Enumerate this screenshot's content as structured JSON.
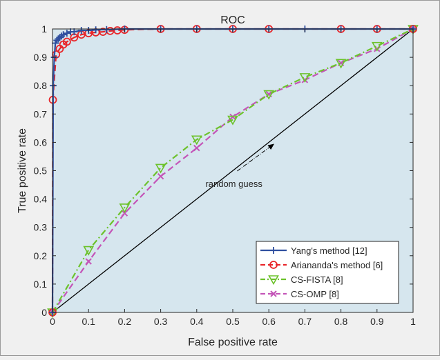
{
  "chart_data": {
    "type": "line",
    "title": "ROC",
    "xlabel": "False positive rate",
    "ylabel": "True positive rate",
    "xlim": [
      0,
      1
    ],
    "ylim": [
      0,
      1
    ],
    "xticks": [
      "0",
      "0.1",
      "0.2",
      "0.3",
      "0.4",
      "0.5",
      "0.6",
      "0.7",
      "0.8",
      "0.9",
      "1"
    ],
    "yticks": [
      "0",
      "0.1",
      "0.2",
      "0.3",
      "0.4",
      "0.5",
      "0.6",
      "0.7",
      "0.8",
      "0.9",
      "1"
    ],
    "grid": false,
    "legend_position": "bottom-right",
    "plot_background": "#d6e6ee",
    "series": [
      {
        "name": "Yang's method [12]",
        "color": "#2f4f9f",
        "marker": "plus",
        "line_style": "solid",
        "x": [
          0,
          0.002,
          0.005,
          0.008,
          0.012,
          0.016,
          0.02,
          0.025,
          0.03,
          0.04,
          0.05,
          0.06,
          0.08,
          0.1,
          0.12,
          0.15,
          0.2,
          0.3,
          0.4,
          0.5,
          0.6,
          0.7,
          0.8,
          0.9,
          1
        ],
        "y": [
          0,
          0.8,
          0.9,
          0.95,
          0.96,
          0.965,
          0.97,
          0.975,
          0.98,
          0.985,
          0.99,
          0.99,
          0.995,
          0.995,
          0.997,
          0.998,
          1,
          1,
          1,
          1,
          1,
          1,
          1,
          1,
          1
        ]
      },
      {
        "name": "Ariananda's method [6]",
        "color": "#e8262a",
        "marker": "circle",
        "line_style": "dashed",
        "x": [
          0,
          0.001,
          0.01,
          0.02,
          0.03,
          0.04,
          0.06,
          0.08,
          0.1,
          0.12,
          0.14,
          0.16,
          0.18,
          0.2,
          0.3,
          0.4,
          0.5,
          0.6,
          0.8,
          0.9,
          1
        ],
        "y": [
          0,
          0.75,
          0.91,
          0.93,
          0.945,
          0.955,
          0.97,
          0.98,
          0.985,
          0.988,
          0.99,
          0.993,
          0.995,
          0.997,
          1,
          1,
          1,
          1,
          1,
          1,
          1
        ]
      },
      {
        "name": "CS-FISTA [8]",
        "color": "#6cc22b",
        "marker": "triangle-down",
        "line_style": "dash-dot",
        "x": [
          0,
          0.1,
          0.2,
          0.3,
          0.4,
          0.5,
          0.6,
          0.7,
          0.8,
          0.9,
          1
        ],
        "y": [
          0,
          0.22,
          0.37,
          0.51,
          0.61,
          0.68,
          0.77,
          0.83,
          0.88,
          0.94,
          1
        ]
      },
      {
        "name": "CS-OMP [8]",
        "color": "#c455b8",
        "marker": "x",
        "line_style": "dashed",
        "x": [
          0,
          0.1,
          0.2,
          0.3,
          0.4,
          0.5,
          0.6,
          0.7,
          0.8,
          0.9,
          1
        ],
        "y": [
          0,
          0.18,
          0.35,
          0.48,
          0.58,
          0.69,
          0.77,
          0.82,
          0.88,
          0.93,
          1
        ]
      }
    ],
    "reference_line": {
      "x": [
        0,
        1
      ],
      "y": [
        0,
        1
      ],
      "color": "#000000"
    },
    "annotations": [
      {
        "text": "random guess",
        "text_x": 0.52,
        "text_y": 0.455,
        "arrow_to_x": 0.615,
        "arrow_to_y": 0.595
      }
    ]
  }
}
